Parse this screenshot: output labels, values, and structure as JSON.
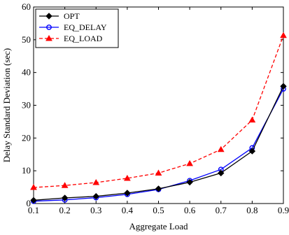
{
  "chart_data": {
    "type": "line",
    "title": "",
    "xlabel": "Aggregate Load",
    "ylabel": "Delay Standard Deviation (sec)",
    "xlim": [
      0.1,
      0.9
    ],
    "ylim": [
      0,
      60
    ],
    "x": [
      0.1,
      0.2,
      0.3,
      0.4,
      0.5,
      0.6,
      0.7,
      0.8,
      0.9
    ],
    "xticks": [
      "0.1",
      "0.2",
      "0.3",
      "0.4",
      "0.5",
      "0.6",
      "0.7",
      "0.8",
      "0.9"
    ],
    "yticks": [
      "0",
      "10",
      "20",
      "30",
      "40",
      "50",
      "60"
    ],
    "grid": false,
    "legend_position": "top-left",
    "series": [
      {
        "name": "OPT",
        "color": "#000000",
        "marker": "diamond",
        "dash": "solid",
        "values": [
          1.0,
          1.7,
          2.2,
          3.2,
          4.5,
          6.5,
          9.3,
          16.0,
          35.8
        ]
      },
      {
        "name": "EQ_DELAY",
        "color": "#0000ff",
        "marker": "circle",
        "dash": "solid",
        "values": [
          0.7,
          1.1,
          1.8,
          2.8,
          4.3,
          7.0,
          10.4,
          17.0,
          35.0
        ]
      },
      {
        "name": "EQ_LOAD",
        "color": "#ff0000",
        "marker": "triangle",
        "dash": "dashed",
        "values": [
          4.9,
          5.5,
          6.4,
          7.7,
          9.3,
          12.2,
          16.5,
          25.5,
          51.3
        ]
      }
    ]
  }
}
